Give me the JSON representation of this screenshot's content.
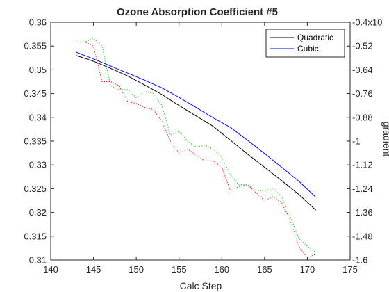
{
  "chart_data": {
    "type": "line",
    "title": "Ozone Absorption Coefficient  #5",
    "xlabel": "Calc Step",
    "ylabel": "",
    "ylabel_right": "gradient",
    "xlim": [
      140,
      175
    ],
    "ylim": [
      0.31,
      0.36
    ],
    "ylim_right": [
      -1.6,
      -0.4
    ],
    "x_ticks": [
      "140",
      "145",
      "150",
      "155",
      "160",
      "165",
      "170",
      "175"
    ],
    "y_ticks": [
      "0.31",
      "0.315",
      "0.32",
      "0.325",
      "0.33",
      "0.335",
      "0.34",
      "0.345",
      "0.35",
      "0.355",
      "0.36"
    ],
    "y_ticks_right": [
      "-1.6",
      "-1.48",
      "-1.36",
      "-1.24",
      "-1.12",
      "-1",
      "-0.88",
      "-0.76",
      "-0.64",
      "-0.52",
      "-0.4x10"
    ],
    "legend_position": "top-right",
    "series": [
      {
        "name": "Quadratic",
        "axis": "left",
        "style": "solid",
        "color": "#000000",
        "x": [
          143,
          145,
          147,
          149,
          151,
          153,
          155,
          157,
          159,
          161,
          163,
          165,
          167,
          169,
          171
        ],
        "y": [
          0.353,
          0.3518,
          0.3503,
          0.3487,
          0.3468,
          0.3448,
          0.3425,
          0.3403,
          0.3381,
          0.3352,
          0.3323,
          0.3295,
          0.3267,
          0.3238,
          0.3205
        ]
      },
      {
        "name": "Cubic",
        "axis": "left",
        "style": "solid",
        "color": "#0000ff",
        "x": [
          143,
          145,
          147,
          149,
          151,
          153,
          155,
          157,
          159,
          161,
          163,
          165,
          167,
          169,
          171
        ],
        "y": [
          0.3537,
          0.3523,
          0.3508,
          0.3493,
          0.3478,
          0.3462,
          0.3442,
          0.3421,
          0.3399,
          0.3379,
          0.3352,
          0.3324,
          0.3295,
          0.3266,
          0.3232
        ]
      },
      {
        "axis": "right",
        "style": "dotted",
        "color": "#ff0000",
        "x": [
          143,
          144,
          145,
          146,
          147,
          148,
          149,
          150,
          151,
          152,
          153,
          154,
          155,
          156,
          157,
          158,
          159,
          160,
          161,
          162,
          163,
          164,
          165,
          166,
          167,
          168,
          169,
          170,
          171
        ],
        "y": [
          -0.5,
          -0.5,
          -0.52,
          -0.7,
          -0.7,
          -0.72,
          -0.8,
          -0.81,
          -0.83,
          -0.84,
          -0.9,
          -1.0,
          -1.06,
          -1.04,
          -1.07,
          -1.1,
          -1.1,
          -1.13,
          -1.25,
          -1.23,
          -1.22,
          -1.26,
          -1.3,
          -1.28,
          -1.31,
          -1.4,
          -1.53,
          -1.59,
          -1.57
        ]
      },
      {
        "axis": "right",
        "style": "dotted",
        "color": "#00cc00",
        "x": [
          143,
          144,
          145,
          146,
          147,
          148,
          149,
          150,
          151,
          152,
          153,
          154,
          155,
          156,
          157,
          158,
          159,
          160,
          161,
          162,
          163,
          164,
          165,
          166,
          167,
          168,
          169,
          170,
          171
        ],
        "y": [
          -0.5,
          -0.5,
          -0.48,
          -0.52,
          -0.72,
          -0.74,
          -0.74,
          -0.78,
          -0.75,
          -0.76,
          -0.82,
          -0.97,
          -0.95,
          -1.0,
          -1.03,
          -1.02,
          -1.04,
          -1.08,
          -1.17,
          -1.22,
          -1.22,
          -1.25,
          -1.25,
          -1.24,
          -1.28,
          -1.38,
          -1.49,
          -1.53,
          -1.56
        ]
      }
    ]
  }
}
